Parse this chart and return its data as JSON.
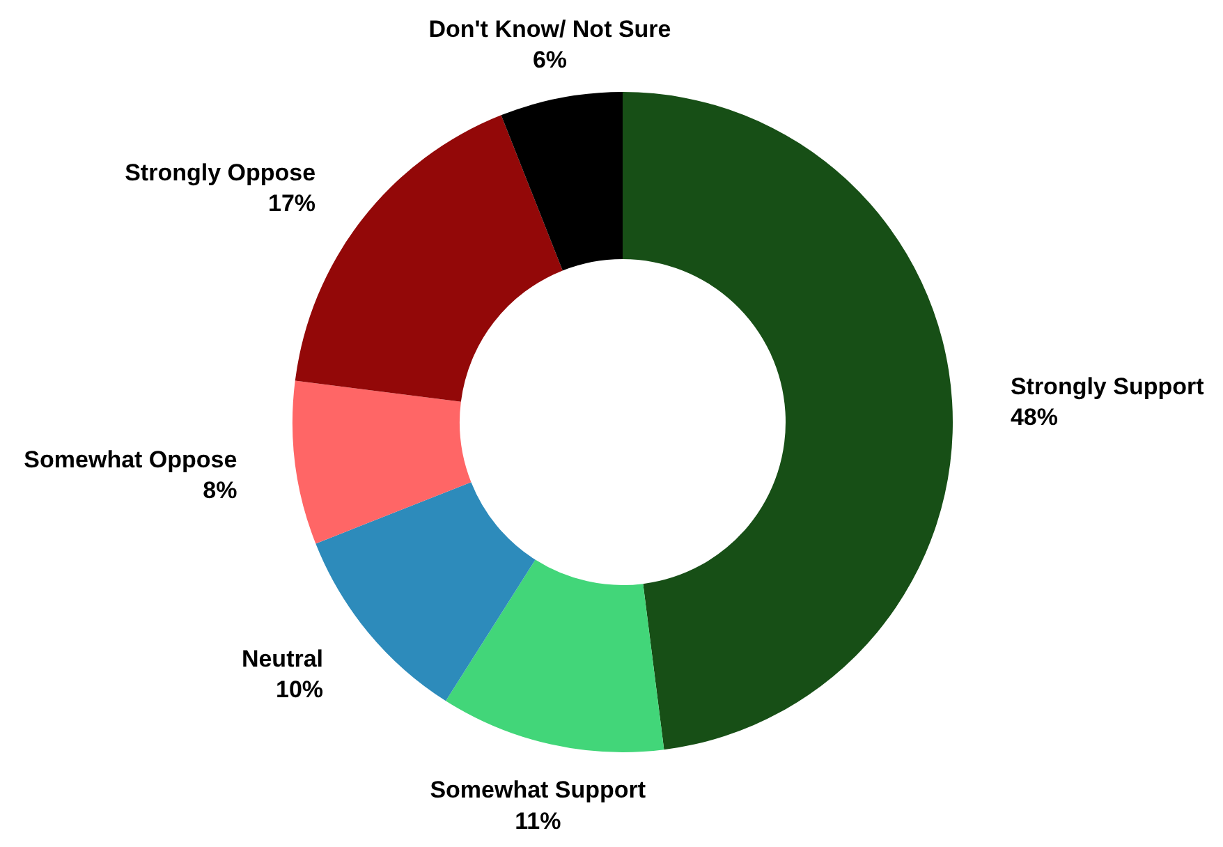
{
  "chart_data": {
    "type": "donut",
    "categories": [
      "Strongly Support",
      "Somewhat Support",
      "Neutral",
      "Somewhat Oppose",
      "Strongly Oppose",
      "Don't Know/ Not Sure"
    ],
    "values": [
      48,
      11,
      10,
      8,
      17,
      6
    ],
    "value_labels": [
      "48%",
      "11%",
      "10%",
      "8%",
      "17%",
      "6%"
    ],
    "colors": [
      "#174f16",
      "#42d679",
      "#2d8bbb",
      "#ff6666",
      "#930808",
      "#000000"
    ]
  }
}
